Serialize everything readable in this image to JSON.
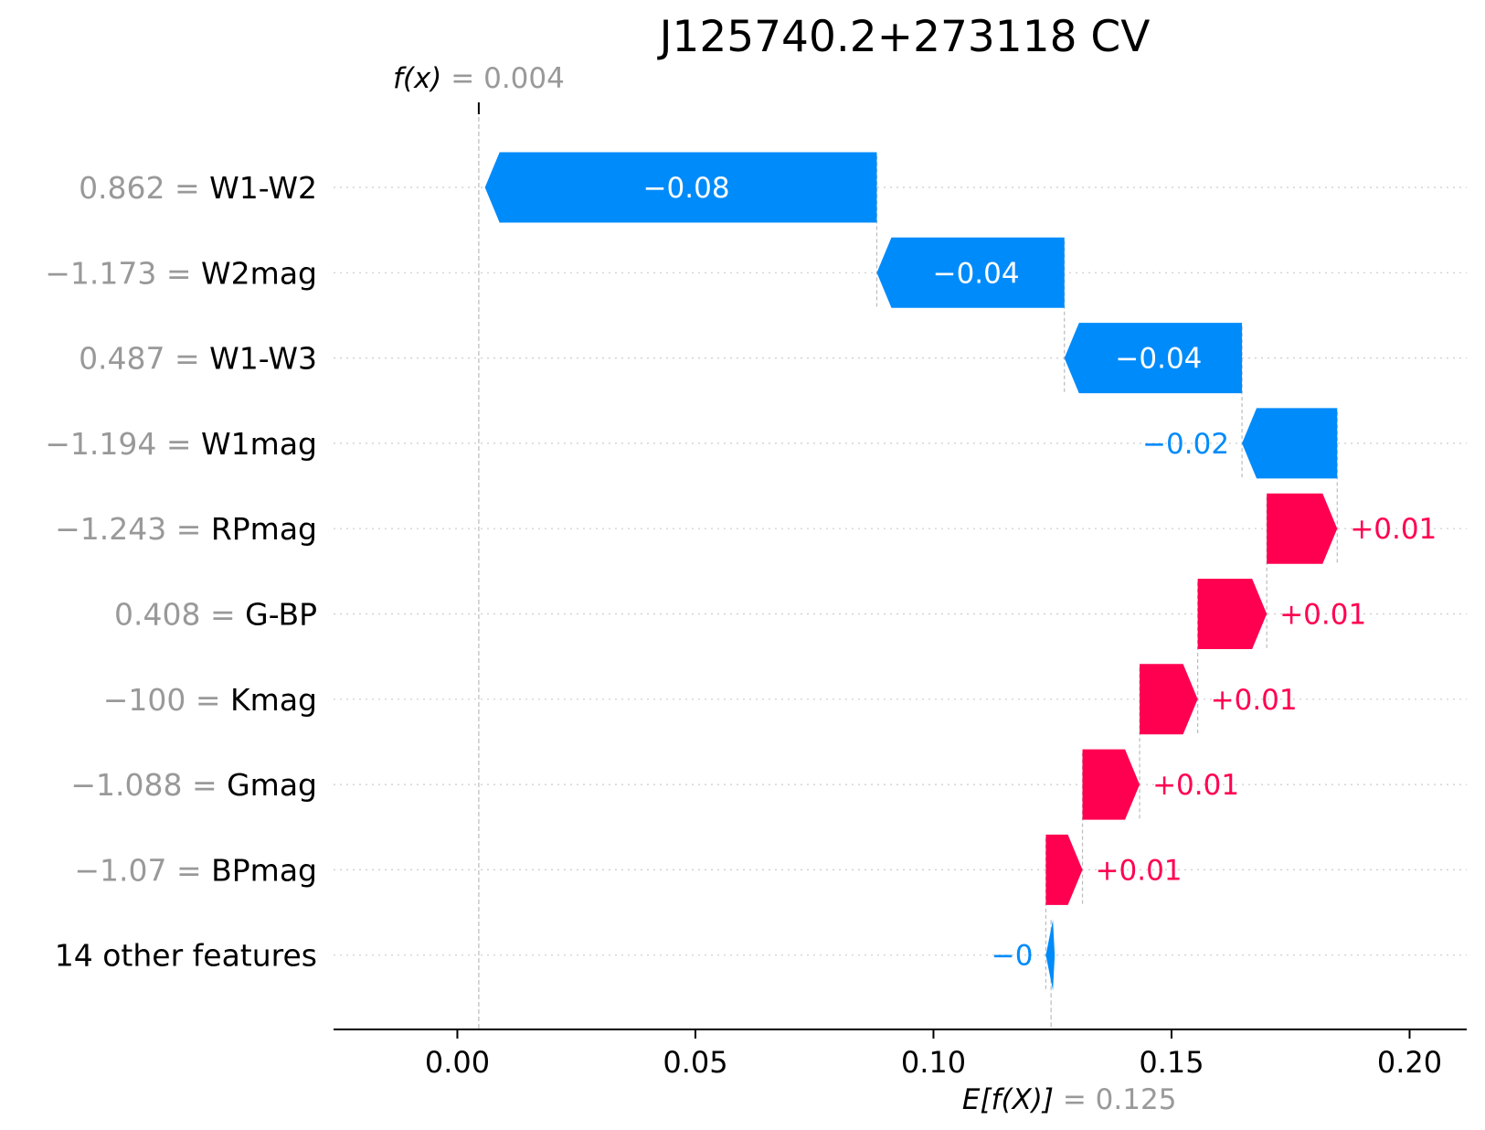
{
  "chart_data": {
    "type": "bar",
    "title": "J125740.2+273118 CV",
    "fx_label": "f(x)",
    "fx_value_text": "= 0.004",
    "ef_label": "E[f(X)]",
    "ef_value_text": "= 0.125",
    "base_value": 0.1247,
    "output_value": 0.0045,
    "xlim": [
      -0.026,
      0.212
    ],
    "xticks": [
      {
        "value": 0.0,
        "label": "0.00"
      },
      {
        "value": 0.05,
        "label": "0.05"
      },
      {
        "value": 0.1,
        "label": "0.10"
      },
      {
        "value": 0.15,
        "label": "0.15"
      },
      {
        "value": 0.2,
        "label": "0.20"
      }
    ],
    "rows": [
      {
        "feature_value": "0.862",
        "feature": "W1-W2",
        "shap": -0.0823,
        "label": "−0.08"
      },
      {
        "feature_value": "−1.173",
        "feature": "W2mag",
        "shap": -0.0394,
        "label": "−0.04"
      },
      {
        "feature_value": "0.487",
        "feature": "W1-W3",
        "shap": -0.0373,
        "label": "−0.04"
      },
      {
        "feature_value": "−1.194",
        "feature": "W1mag",
        "shap": -0.02,
        "label": "−0.02"
      },
      {
        "feature_value": "−1.243",
        "feature": "RPmag",
        "shap": 0.0148,
        "label": "+0.01"
      },
      {
        "feature_value": "0.408",
        "feature": "G-BP",
        "shap": 0.0145,
        "label": "+0.01"
      },
      {
        "feature_value": "−100",
        "feature": "Kmag",
        "shap": 0.0122,
        "label": "+0.01"
      },
      {
        "feature_value": "−1.088",
        "feature": "Gmag",
        "shap": 0.012,
        "label": "+0.01"
      },
      {
        "feature_value": "−1.07",
        "feature": "BPmag",
        "shap": 0.0077,
        "label": "+0.01"
      },
      {
        "feature_value": "",
        "feature": "14 other features",
        "shap": -0.0011,
        "label": "−0"
      }
    ],
    "colors": {
      "positive": "#ff0051",
      "negative": "#008bfb",
      "value_text": "#999999",
      "feature_text": "#000000",
      "grid": "#cccccc"
    }
  }
}
